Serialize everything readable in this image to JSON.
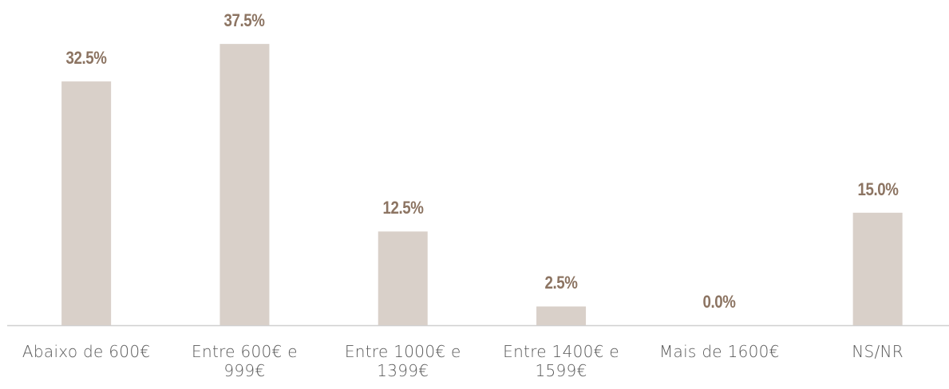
{
  "chart_data": {
    "type": "bar",
    "categories": [
      "Abaixo de 600€",
      "Entre 600€ e 999€",
      "Entre 1000€ e 1399€",
      "Entre 1400€ e 1599€",
      "Mais de 1600€",
      "NS/NR"
    ],
    "values": [
      32.5,
      37.5,
      12.5,
      2.5,
      0.0,
      15.0
    ],
    "value_labels": [
      "32.5%",
      "37.5%",
      "12.5%",
      "2.5%",
      "0.0%",
      "15.0%"
    ],
    "color": "#d9d0c9",
    "label_color": "#8c7462"
  }
}
